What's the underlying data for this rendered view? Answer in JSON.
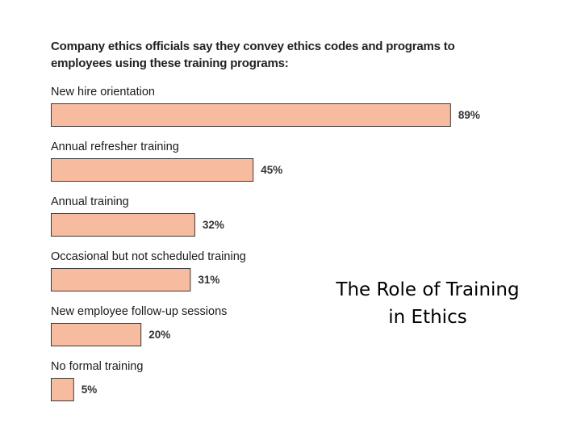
{
  "chart_data": {
    "type": "bar",
    "orientation": "horizontal",
    "title": "Company ethics officials say they convey ethics codes and programs to employees using these training programs:",
    "categories": [
      "New hire orientation",
      "Annual refresher training",
      "Annual training",
      "Occasional but not scheduled training",
      "New employee follow-up sessions",
      "No formal training"
    ],
    "values": [
      89,
      45,
      32,
      31,
      20,
      5
    ],
    "value_labels": [
      "89%",
      "45%",
      "32%",
      "31%",
      "20%",
      "5%"
    ],
    "unit": "%",
    "xlim": [
      0,
      100
    ],
    "bar_color": "#f7bba0",
    "bar_border_color": "#3a3a3a",
    "grid": false,
    "legend": "none"
  },
  "slide": {
    "caption_line1": "The Role of Training",
    "caption_line2": "in Ethics"
  }
}
